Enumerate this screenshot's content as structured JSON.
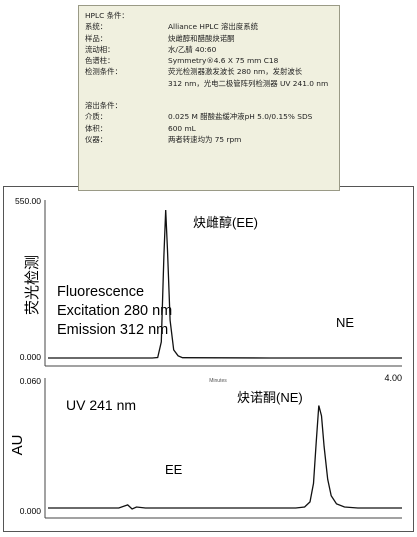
{
  "conditions": {
    "header": "HPLC 条件：",
    "rows": [
      {
        "k": "系统：",
        "v": "Alliance HPLC 溶出度系统"
      },
      {
        "k": "样品：",
        "v": "炔雌醇和醋酸炔诺酮"
      },
      {
        "k": "流动相：",
        "v": "水/乙腈 40:60"
      },
      {
        "k": "色谱柱：",
        "v": "Symmetry®4.6 X 75 mm C18"
      },
      {
        "k": "检测条件：",
        "v": "荧光检测器激发波长 280 nm，发射波长"
      },
      {
        "k": "",
        "v": "312 nm，光电二极管阵列检测器 UV 241.0 nm"
      }
    ],
    "dissolution_header": "溶出条件：",
    "dissolution_rows": [
      {
        "k": "介质：",
        "v": "0.025 M 醋酸盐缓冲液pH 5.0/0.15% SDS"
      },
      {
        "k": "体积：",
        "v": "600 mL"
      },
      {
        "k": "仪器：",
        "v": "两者转速均为 75 rpm"
      }
    ]
  },
  "chart_data": [
    {
      "type": "line",
      "ylabel": "荧光检测",
      "xlabel": "Minutes",
      "xlim": [
        0,
        4.0
      ],
      "ylim": [
        0,
        550.0
      ],
      "ytick_labels": [
        "550.00",
        "0.000"
      ],
      "xtick_labels": [
        "4.00"
      ],
      "annotations": [
        "Fluorescence",
        "Excitation 280 nm",
        "Emission 312 nm"
      ],
      "peaks": [
        {
          "label": "炔雌醇(EE)",
          "x": 1.33,
          "y": 550
        },
        {
          "label": "NE",
          "x": 3.0,
          "y": 0
        }
      ],
      "series": [
        {
          "values_x": [
            0,
            1.18,
            1.24,
            1.28,
            1.31,
            1.33,
            1.35,
            1.38,
            1.42,
            1.47,
            1.52,
            2.5,
            3.5,
            4.0
          ],
          "values_y": [
            0,
            0,
            2,
            60,
            380,
            550,
            400,
            140,
            30,
            8,
            1,
            0,
            0,
            0
          ]
        }
      ]
    },
    {
      "type": "line",
      "ylabel": "AU",
      "xlim": [
        0,
        4.0
      ],
      "ylim": [
        0,
        0.06
      ],
      "ytick_labels": [
        "0.060",
        "0.000"
      ],
      "annotations": [
        "UV 241 nm"
      ],
      "peaks": [
        {
          "label": "EE",
          "x": 1.33,
          "y": 0
        },
        {
          "label": "炔诺酮(NE)",
          "x": 3.06,
          "y": 0.05
        }
      ],
      "series": [
        {
          "values_x": [
            0,
            0.8,
            0.9,
            0.95,
            1.0,
            1.1,
            2.8,
            2.9,
            2.96,
            3.0,
            3.03,
            3.06,
            3.09,
            3.12,
            3.16,
            3.2,
            3.26,
            3.35,
            3.5,
            4.0
          ],
          "values_y": [
            0,
            0,
            0.0015,
            -0.0005,
            0.0005,
            0,
            0,
            0.0005,
            0.003,
            0.012,
            0.032,
            0.05,
            0.045,
            0.03,
            0.014,
            0.006,
            0.002,
            0.0005,
            0,
            0
          ]
        }
      ]
    }
  ]
}
